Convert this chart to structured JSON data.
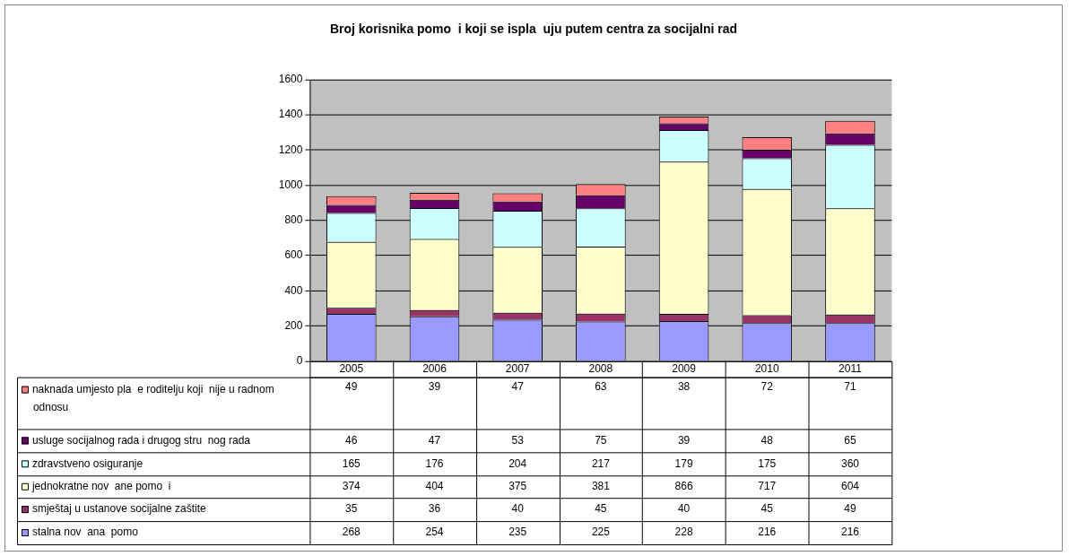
{
  "chart_data": {
    "type": "bar",
    "title": "Broj korisnika pomo  i koji se ispla  uju putem centra za socijalni rad",
    "categories": [
      "2005",
      "2006",
      "2007",
      "2008",
      "2009",
      "2010",
      "2011"
    ],
    "stacked": true,
    "ylim": [
      0,
      1600
    ],
    "yticks": [
      0,
      200,
      400,
      600,
      800,
      1000,
      1200,
      1400,
      1600
    ],
    "grid": "y",
    "legend": "bottom",
    "data_labels": true,
    "series": [
      {
        "name": "stalna nov  ana  pomo",
        "color": "#9999ff",
        "values": [
          268,
          254,
          235,
          225,
          228,
          216,
          216
        ]
      },
      {
        "name": "smještaj u ustanove socijalne zaštite",
        "color": "#993366",
        "values": [
          35,
          36,
          40,
          45,
          40,
          45,
          49
        ]
      },
      {
        "name": "jednokratne nov  ane pomo  i",
        "color": "#ffffcc",
        "values": [
          374,
          404,
          375,
          381,
          866,
          717,
          604
        ]
      },
      {
        "name": "zdravstveno osiguranje",
        "color": "#ccffff",
        "values": [
          165,
          176,
          204,
          217,
          179,
          175,
          360
        ]
      },
      {
        "name": "usluge socijalnog rada i drugog stru  nog rada",
        "color": "#660066",
        "values": [
          46,
          47,
          53,
          75,
          39,
          48,
          65
        ]
      },
      {
        "name": "naknada umjesto pla  e roditelju koji  nije u radnom odnosu",
        "color": "#ff8080",
        "values": [
          49,
          39,
          47,
          63,
          38,
          72,
          71
        ]
      }
    ]
  }
}
